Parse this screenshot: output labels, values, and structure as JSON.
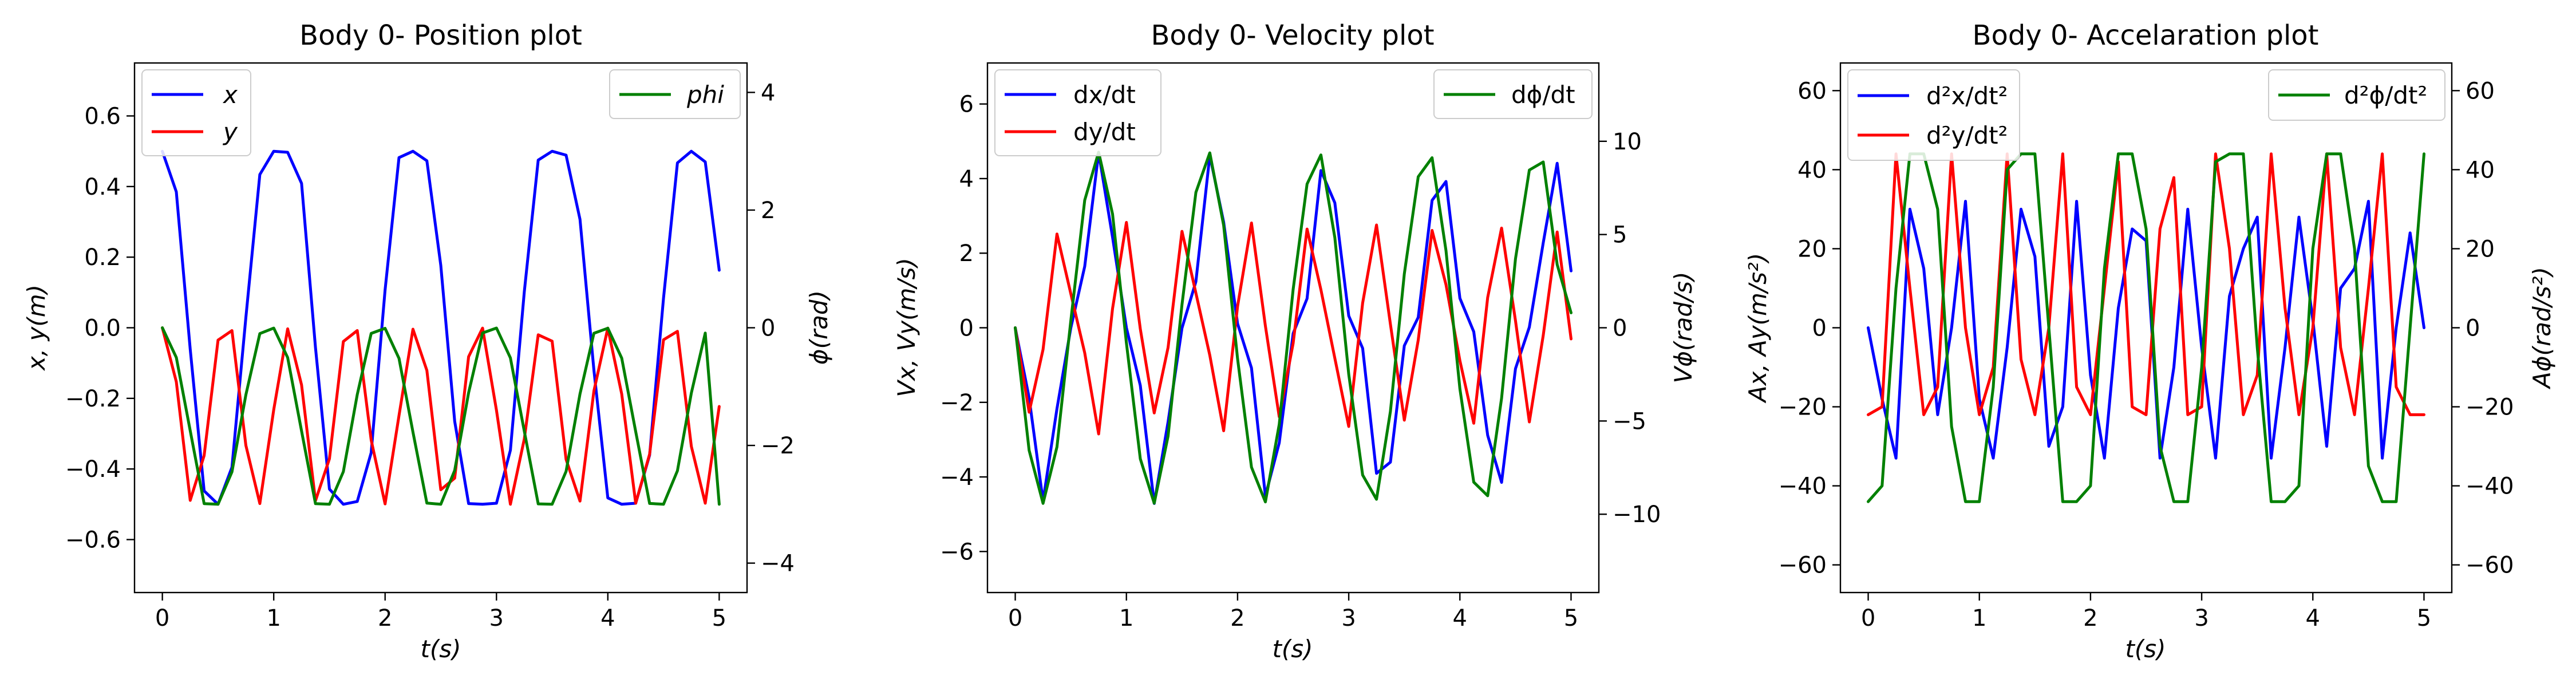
{
  "chart_data": [
    {
      "type": "line",
      "title": "Body 0- Position plot",
      "xlabel": "t(s)",
      "ylabel": "x, y(m)",
      "ylabel_right": "ϕ(rad)",
      "xlim": [
        -0.25,
        5.25
      ],
      "ylim": [
        -0.75,
        0.75
      ],
      "ylim_right": [
        -4.5,
        4.5
      ],
      "xticks": [
        0,
        1,
        2,
        3,
        4,
        5
      ],
      "xticklabels": [
        "0",
        "1",
        "2",
        "3",
        "4",
        "5"
      ],
      "yticks": [
        -0.6,
        -0.4,
        -0.2,
        0.0,
        0.2,
        0.4,
        0.6
      ],
      "yticklabels": [
        "−0.6",
        "−0.4",
        "−0.2",
        "0.0",
        "0.2",
        "0.4",
        "0.6"
      ],
      "yticks_right": [
        -4,
        -2,
        0,
        2,
        4
      ],
      "yticklabels_right": [
        "−4",
        "−2",
        "0",
        "2",
        "4"
      ],
      "legend_left": {
        "placement": "upper-left",
        "entries": [
          "x",
          "y"
        ]
      },
      "legend_right": {
        "placement": "upper-right",
        "entries": [
          "phi"
        ]
      },
      "grid": false,
      "series": [
        {
          "name": "x",
          "axis": "left",
          "color": "#0000ff",
          "x": [
            0,
            0.125,
            0.25,
            0.375,
            0.5,
            0.625,
            0.75,
            0.875,
            1,
            1.125,
            1.25,
            1.375,
            1.5,
            1.625,
            1.75,
            1.875,
            2,
            2.125,
            2.25,
            2.375,
            2.5,
            2.625,
            2.75,
            2.875,
            3,
            3.125,
            3.25,
            3.375,
            3.5,
            3.625,
            3.75,
            3.875,
            4,
            4.125,
            4.25,
            4.375,
            4.5,
            4.625,
            4.75,
            4.875,
            5
          ],
          "y": [
            0.5,
            0.385,
            -0.061,
            -0.462,
            -0.5,
            -0.395,
            0.029,
            0.434,
            0.5,
            0.497,
            0.409,
            -0.056,
            -0.457,
            -0.5,
            -0.492,
            -0.354,
            0.107,
            0.482,
            0.5,
            0.473,
            0.177,
            -0.265,
            -0.498,
            -0.5,
            -0.497,
            -0.347,
            0.102,
            0.475,
            0.5,
            0.489,
            0.307,
            -0.12,
            -0.482,
            -0.5,
            -0.497,
            -0.361,
            0.084,
            0.467,
            0.5,
            0.47,
            0.163
          ]
        },
        {
          "name": "y",
          "axis": "left",
          "color": "#ff0000",
          "x": [
            0,
            0.125,
            0.25,
            0.375,
            0.5,
            0.625,
            0.75,
            0.875,
            1,
            1.125,
            1.25,
            1.375,
            1.5,
            1.625,
            1.75,
            1.875,
            2,
            2.125,
            2.25,
            2.375,
            2.5,
            2.625,
            2.75,
            2.875,
            3,
            3.125,
            3.25,
            3.375,
            3.5,
            3.625,
            3.75,
            3.875,
            4,
            4.125,
            4.25,
            4.375,
            4.5,
            4.625,
            4.75,
            4.875,
            5
          ],
          "y": [
            0.0,
            -0.153,
            -0.489,
            -0.362,
            -0.035,
            -0.008,
            -0.333,
            -0.498,
            -0.232,
            -0.003,
            -0.162,
            -0.49,
            -0.371,
            -0.039,
            -0.008,
            -0.318,
            -0.499,
            -0.249,
            -0.004,
            -0.121,
            -0.459,
            -0.426,
            -0.082,
            -0.001,
            -0.234,
            -0.5,
            -0.315,
            -0.02,
            -0.038,
            -0.373,
            -0.491,
            -0.179,
            -0.001,
            -0.188,
            -0.497,
            -0.358,
            -0.034,
            -0.01,
            -0.336,
            -0.497,
            -0.223
          ]
        },
        {
          "name": "phi",
          "axis": "right",
          "color": "#008000",
          "x": [
            0,
            0.125,
            0.25,
            0.375,
            0.5,
            0.625,
            0.75,
            0.875,
            1,
            1.125,
            1.25,
            1.375,
            1.5,
            1.625,
            1.75,
            1.875,
            2,
            2.125,
            2.25,
            2.375,
            2.5,
            2.625,
            2.75,
            2.875,
            3,
            3.125,
            3.25,
            3.375,
            3.5,
            3.625,
            3.75,
            3.875,
            4,
            4.125,
            4.25,
            4.375,
            4.5,
            4.625,
            4.75,
            4.875,
            5
          ],
          "y": [
            0.0,
            -0.505,
            -1.75,
            -2.989,
            -3.0,
            -2.45,
            -1.14,
            -0.099,
            -0.006,
            -0.507,
            -1.755,
            -2.99,
            -3.0,
            -2.445,
            -1.135,
            -0.096,
            -0.01,
            -0.52,
            -1.774,
            -2.98,
            -3.0,
            -2.425,
            -1.105,
            -0.089,
            -0.005,
            -0.512,
            -1.757,
            -2.993,
            -3.0,
            -2.44,
            -1.125,
            -0.093,
            -0.008,
            -0.517,
            -1.765,
            -2.986,
            -3.0,
            -2.43,
            -1.11,
            -0.09,
            -3.0
          ]
        }
      ]
    },
    {
      "type": "line",
      "title": "Body 0- Velocity plot",
      "xlabel": "t(s)",
      "ylabel": "Vx, Vy(m/s)",
      "ylabel_right": "Vϕ(rad/s)",
      "xlim": [
        -0.25,
        5.25
      ],
      "ylim": [
        -7.1,
        7.1
      ],
      "ylim_right": [
        -14.2,
        14.2
      ],
      "xticks": [
        0,
        1,
        2,
        3,
        4,
        5
      ],
      "xticklabels": [
        "0",
        "1",
        "2",
        "3",
        "4",
        "5"
      ],
      "yticks": [
        -6,
        -4,
        -2,
        0,
        2,
        4,
        6
      ],
      "yticklabels": [
        "−6",
        "−4",
        "−2",
        "0",
        "2",
        "4",
        "6"
      ],
      "yticks_right": [
        -10,
        -5,
        0,
        5,
        10
      ],
      "yticklabels_right": [
        "−10",
        "−5",
        "0",
        "5",
        "10"
      ],
      "legend_left": {
        "placement": "upper-left",
        "entries": [
          "dx/dt",
          "dy/dt"
        ]
      },
      "legend_right": {
        "placement": "upper-right",
        "entries": [
          "dϕ/dt"
        ]
      },
      "grid": false,
      "series": [
        {
          "name": "dx/dt",
          "axis": "left",
          "color": "#0000ff",
          "x": [
            0,
            0.125,
            0.25,
            0.375,
            0.5,
            0.625,
            0.75,
            0.875,
            1,
            1.125,
            1.25,
            1.375,
            1.5,
            1.625,
            1.75,
            1.875,
            2,
            2.125,
            2.25,
            2.375,
            2.5,
            2.625,
            2.75,
            2.875,
            3,
            3.125,
            3.25,
            3.375,
            3.5,
            3.625,
            3.75,
            3.875,
            4,
            4.125,
            4.25,
            4.375,
            4.5,
            4.625,
            4.75,
            4.875,
            5
          ],
          "y": [
            0.0,
            -1.879,
            -4.651,
            -2.17,
            -0.005,
            1.645,
            4.698,
            2.43,
            0.002,
            -1.548,
            -4.712,
            -2.523,
            -0.009,
            1.238,
            4.623,
            2.832,
            0.111,
            -1.077,
            -4.508,
            -3.086,
            -0.152,
            0.783,
            4.215,
            3.351,
            0.321,
            -0.549,
            -3.904,
            -3.604,
            -0.481,
            0.28,
            3.416,
            3.922,
            0.79,
            -0.108,
            -2.883,
            -4.147,
            -1.096,
            0.017,
            2.28,
            4.41,
            1.525
          ]
        },
        {
          "name": "dy/dt",
          "axis": "left",
          "color": "#ff0000",
          "x": [
            0,
            0.125,
            0.25,
            0.375,
            0.5,
            0.625,
            0.75,
            0.875,
            1,
            1.125,
            1.25,
            1.375,
            1.5,
            1.625,
            1.75,
            1.875,
            2,
            2.125,
            2.25,
            2.375,
            2.5,
            2.625,
            2.75,
            2.875,
            3,
            3.125,
            3.25,
            3.375,
            3.5,
            3.625,
            3.75,
            3.875,
            4,
            4.125,
            4.25,
            4.375,
            4.5,
            4.625,
            4.75,
            4.875,
            5
          ],
          "y": [
            0.0,
            -2.264,
            -0.582,
            2.515,
            0.913,
            -0.674,
            -2.848,
            0.512,
            2.825,
            -0.03,
            -2.284,
            -0.529,
            2.585,
            0.931,
            -0.738,
            -2.762,
            0.574,
            2.81,
            0.049,
            -2.388,
            -0.414,
            2.647,
            1.019,
            -0.815,
            -2.647,
            0.663,
            2.756,
            0.097,
            -2.478,
            -0.33,
            2.61,
            1.156,
            -0.882,
            -2.561,
            0.809,
            2.673,
            0.188,
            -2.526,
            -0.203,
            2.569,
            -0.3
          ]
        },
        {
          "name": "dϕ/dt",
          "axis": "right",
          "color": "#008000",
          "x": [
            0,
            0.125,
            0.25,
            0.375,
            0.5,
            0.625,
            0.75,
            0.875,
            1,
            1.125,
            1.25,
            1.375,
            1.5,
            1.625,
            1.75,
            1.875,
            2,
            2.125,
            2.25,
            2.375,
            2.5,
            2.625,
            2.75,
            2.875,
            3,
            3.125,
            3.25,
            3.375,
            3.5,
            3.625,
            3.75,
            3.875,
            4,
            4.125,
            4.25,
            4.375,
            4.5,
            4.625,
            4.75,
            4.875,
            5
          ],
          "y": [
            0.0,
            -6.58,
            -9.42,
            -6.39,
            0.37,
            6.84,
            9.42,
            6.1,
            -0.81,
            -7.03,
            -9.41,
            -5.81,
            1.24,
            7.26,
            9.38,
            5.49,
            -1.66,
            -7.48,
            -9.34,
            -5.18,
            2.06,
            7.71,
            9.27,
            4.84,
            -2.49,
            -7.9,
            -9.2,
            -4.49,
            2.89,
            8.1,
            9.12,
            4.14,
            -3.28,
            -8.28,
            -9.01,
            -3.78,
            3.7,
            8.46,
            8.89,
            3.39,
            0.8
          ]
        }
      ]
    },
    {
      "type": "line",
      "title": "Body 0- Accelaration plot",
      "xlabel": "t(s)",
      "ylabel": "Ax, Ay(m/s²)",
      "ylabel_right": "Aϕ(rad/s²)",
      "xlim": [
        -0.25,
        5.25
      ],
      "ylim": [
        -67,
        67
      ],
      "ylim_right": [
        -67,
        67
      ],
      "xticks": [
        0,
        1,
        2,
        3,
        4,
        5
      ],
      "xticklabels": [
        "0",
        "1",
        "2",
        "3",
        "4",
        "5"
      ],
      "yticks": [
        -60,
        -40,
        -20,
        0,
        20,
        40,
        60
      ],
      "yticklabels": [
        "−60",
        "−40",
        "−20",
        "0",
        "20",
        "40",
        "60"
      ],
      "yticks_right": [
        -60,
        -40,
        -20,
        0,
        20,
        40,
        60
      ],
      "yticklabels_right": [
        "−60",
        "−40",
        "−20",
        "0",
        "20",
        "40",
        "60"
      ],
      "legend_left": {
        "placement": "upper-left",
        "entries": [
          "d²x/dt²",
          "d²y/dt²"
        ]
      },
      "legend_right": {
        "placement": "upper-right",
        "entries": [
          "d²ϕ/dt²"
        ]
      },
      "grid": false,
      "series": [
        {
          "name": "d²x/dt²",
          "axis": "left",
          "color": "#0000ff",
          "x": [
            0,
            0.125,
            0.25,
            0.375,
            0.5,
            0.625,
            0.75,
            0.875,
            1,
            1.125,
            1.25,
            1.375,
            1.5,
            1.625,
            1.75,
            1.875,
            2,
            2.125,
            2.25,
            2.375,
            2.5,
            2.625,
            2.75,
            2.875,
            3,
            3.125,
            3.25,
            3.375,
            3.5,
            3.625,
            3.75,
            3.875,
            4,
            4.125,
            4.25,
            4.375,
            4.5,
            4.625,
            4.75,
            4.875,
            5
          ],
          "y": [
            0.0,
            -18.0,
            -33.0,
            30.0,
            15.0,
            -22.0,
            0.0,
            32.0,
            -18.0,
            -33.0,
            -5.0,
            30.0,
            18.0,
            -30.0,
            -20.0,
            32.0,
            -12.0,
            -33.0,
            5.0,
            25.0,
            22.0,
            -33.0,
            -10.0,
            30.0,
            -5.0,
            -33.0,
            8.0,
            20.0,
            28.0,
            -33.0,
            -5.0,
            28.0,
            2.0,
            -30.0,
            10.0,
            15.0,
            32.0,
            -33.0,
            0.0,
            24.0,
            0.0
          ]
        },
        {
          "name": "d²y/dt²",
          "axis": "left",
          "color": "#ff0000",
          "x": [
            0,
            0.125,
            0.25,
            0.375,
            0.5,
            0.625,
            0.75,
            0.875,
            1,
            1.125,
            1.25,
            1.375,
            1.5,
            1.625,
            1.75,
            1.875,
            2,
            2.125,
            2.25,
            2.375,
            2.5,
            2.625,
            2.75,
            2.875,
            3,
            3.125,
            3.25,
            3.375,
            3.5,
            3.625,
            3.75,
            3.875,
            4,
            4.125,
            4.25,
            4.375,
            4.5,
            4.625,
            4.75,
            4.875,
            5
          ],
          "y": [
            -22.0,
            -20.0,
            44.0,
            10.0,
            -22.0,
            -15.0,
            44.0,
            0.0,
            -22.0,
            -10.0,
            44.0,
            -8.0,
            -22.0,
            0.0,
            44.0,
            -15.0,
            -22.0,
            10.0,
            42.0,
            -20.0,
            -22.0,
            25.0,
            38.0,
            -22.0,
            -20.0,
            44.0,
            20.0,
            -22.0,
            -12.0,
            44.0,
            5.0,
            -22.0,
            0.0,
            44.0,
            -5.0,
            -22.0,
            10.0,
            44.0,
            -15.0,
            -22.0,
            -22.0
          ]
        },
        {
          "name": "d²ϕ/dt²",
          "axis": "right",
          "color": "#008000",
          "x": [
            0,
            0.125,
            0.25,
            0.375,
            0.5,
            0.625,
            0.75,
            0.875,
            1,
            1.125,
            1.25,
            1.375,
            1.5,
            1.625,
            1.75,
            1.875,
            2,
            2.125,
            2.25,
            2.375,
            2.5,
            2.625,
            2.75,
            2.875,
            3,
            3.125,
            3.25,
            3.375,
            3.5,
            3.625,
            3.75,
            3.875,
            4,
            4.125,
            4.25,
            4.375,
            4.5,
            4.625,
            4.75,
            4.875,
            5
          ],
          "y": [
            -44.0,
            -40.0,
            10.0,
            44.0,
            44.0,
            30.0,
            -25.0,
            -44.0,
            -44.0,
            -15.0,
            40.0,
            44.0,
            44.0,
            0.0,
            -44.0,
            -44.0,
            -40.0,
            15.0,
            44.0,
            44.0,
            25.0,
            -30.0,
            -44.0,
            -44.0,
            -10.0,
            42.0,
            44.0,
            44.0,
            -5.0,
            -44.0,
            -44.0,
            -40.0,
            20.0,
            44.0,
            44.0,
            20.0,
            -35.0,
            -44.0,
            -44.0,
            0.0,
            44.0
          ]
        }
      ]
    }
  ]
}
